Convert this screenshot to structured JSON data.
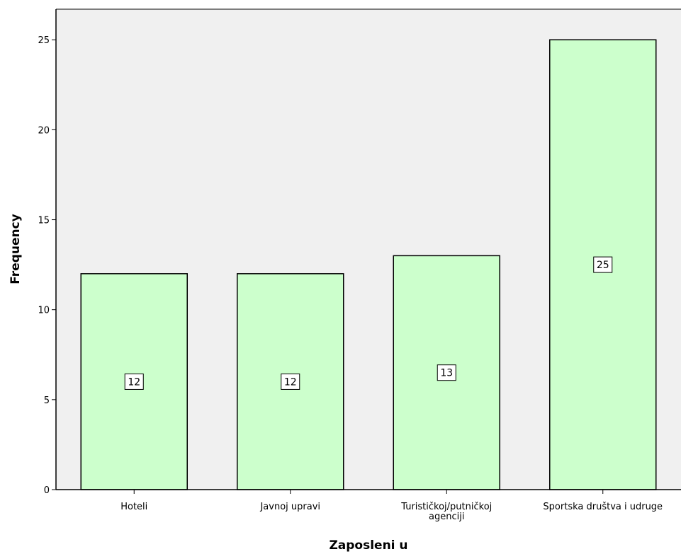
{
  "chart_data": {
    "type": "bar",
    "title": "",
    "xlabel": "Zaposleni u",
    "ylabel": "Frequency",
    "categories": [
      [
        "Hoteli"
      ],
      [
        "Javnoj upravi"
      ],
      [
        "Turističkoj/putničkoj",
        "agenciji"
      ],
      [
        "Sportska društva i udruge"
      ]
    ],
    "values": [
      12,
      12,
      13,
      25
    ],
    "data_labels": [
      "12",
      "12",
      "13",
      "25"
    ],
    "ylim": [
      0,
      26.7
    ],
    "yticks": [
      0,
      5,
      10,
      15,
      20,
      25
    ],
    "grid": false,
    "legend": "none",
    "colors": {
      "bar_fill": "#ccffcc",
      "bar_stroke": "#000000",
      "plot_background": "#f0f0f0",
      "axis": "#000000"
    }
  }
}
